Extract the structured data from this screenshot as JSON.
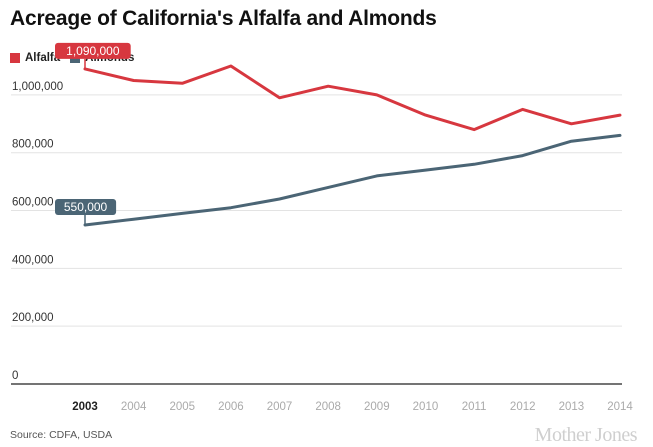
{
  "chart_data": {
    "type": "line",
    "title": "Acreage of California's Alfalfa and Almonds",
    "categories": [
      "2003",
      "2004",
      "2005",
      "2006",
      "2007",
      "2008",
      "2009",
      "2010",
      "2011",
      "2012",
      "2013",
      "2014"
    ],
    "series": [
      {
        "name": "Alfalfa",
        "color": "#d7373f",
        "values": [
          1090000,
          1050000,
          1040000,
          1100000,
          990000,
          1030000,
          1000000,
          930000,
          880000,
          950000,
          900000,
          930000
        ]
      },
      {
        "name": "Almonds",
        "color": "#4b6575",
        "values": [
          550000,
          570000,
          590000,
          610000,
          640000,
          680000,
          720000,
          740000,
          760000,
          790000,
          840000,
          860000
        ]
      }
    ],
    "y_ticks": [
      "0",
      "200,000",
      "400,000",
      "600,000",
      "800,000",
      "1,000,000"
    ],
    "ylim": [
      0,
      1100000
    ],
    "annotations": [
      {
        "series": "Alfalfa",
        "category": "2003",
        "text": "1,090,000"
      },
      {
        "series": "Almonds",
        "category": "2003",
        "text": "550,000"
      }
    ],
    "highlighted_category": "2003",
    "legend_position": "top-left",
    "grid": true
  },
  "source": "Source: CDFA, USDA",
  "logo_text": "Mother Jones"
}
